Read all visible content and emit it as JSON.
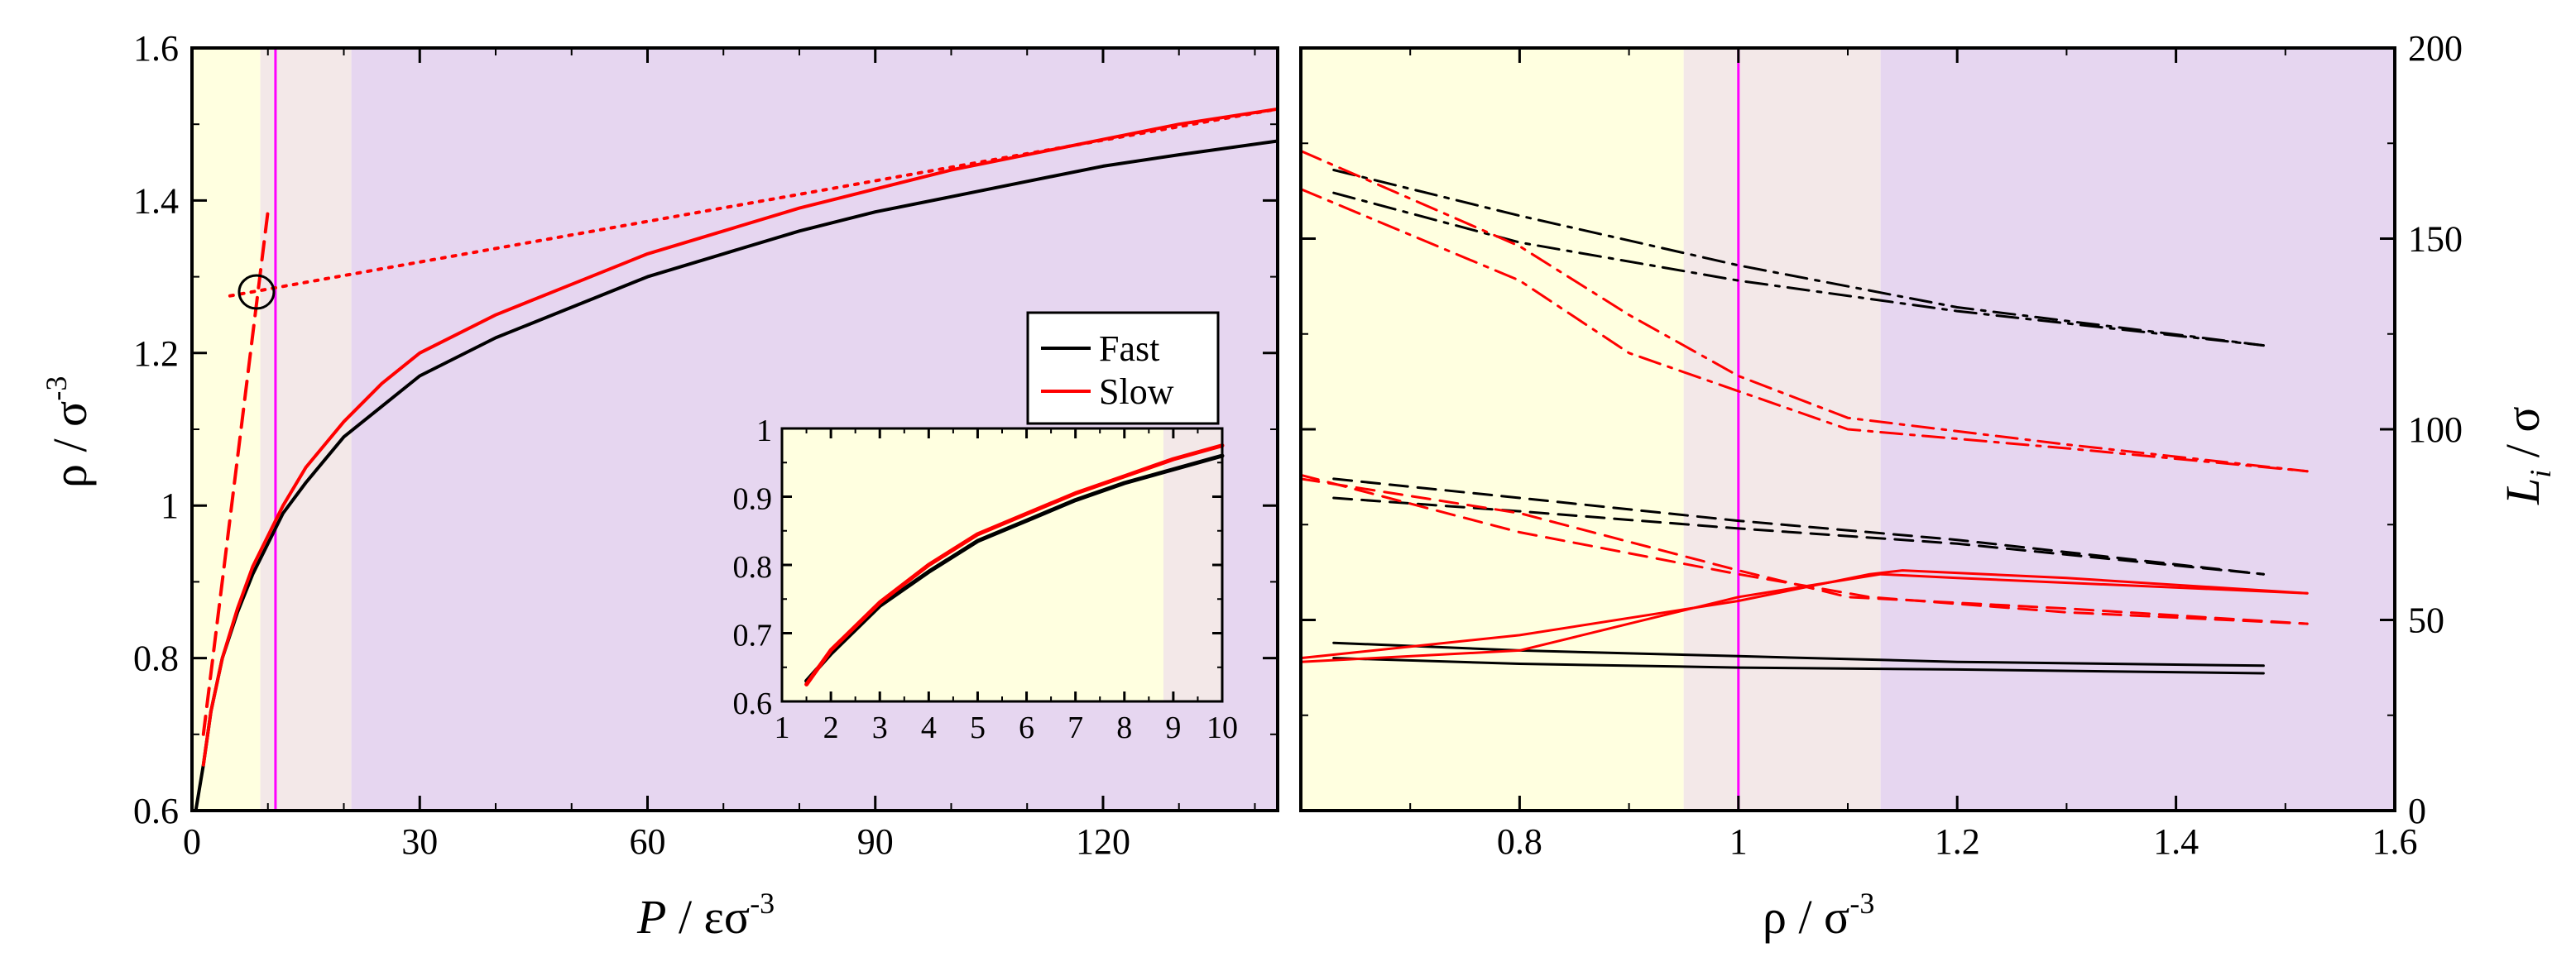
{
  "colors": {
    "yellow": "#ffffe0",
    "pink": "#f3e8e8",
    "purple": "#e6d6f0",
    "magenta": "#ff00ff",
    "fast": "#000000",
    "slow": "#ff0000"
  },
  "chart_data": [
    {
      "type": "line",
      "title": "",
      "xlabel": {
        "P": "P",
        "unit": " / εσ",
        "exp": "-3"
      },
      "ylabel": {
        "main": "ρ / σ",
        "exp": "-3"
      },
      "xlim": [
        0,
        143
      ],
      "ylim": [
        0.6,
        1.6
      ],
      "xticks": [
        0,
        30,
        60,
        90,
        120
      ],
      "yticks": [
        0.6,
        0.8,
        1.0,
        1.2,
        1.4,
        1.6
      ],
      "ytick_labels": [
        "0.6",
        "0.8",
        "1",
        "1.2",
        "1.4",
        "1.6"
      ],
      "regions": [
        {
          "from": 0,
          "to": 9,
          "color": "yellow"
        },
        {
          "from": 9,
          "to": 21,
          "color": "pink"
        },
        {
          "from": 21,
          "to": 143,
          "color": "purple"
        }
      ],
      "vline": 11,
      "legend": {
        "position": "center-right",
        "entries": [
          "Fast",
          "Slow"
        ]
      },
      "series": [
        {
          "name": "Fast",
          "color": "fast",
          "style": "solid",
          "x": [
            0.5,
            1.5,
            2.5,
            4,
            6,
            8,
            10,
            12,
            15,
            20,
            25,
            30,
            40,
            50,
            60,
            70,
            80,
            90,
            100,
            110,
            120,
            130,
            143
          ],
          "y": [
            0.6,
            0.66,
            0.73,
            0.8,
            0.86,
            0.91,
            0.95,
            0.99,
            1.03,
            1.09,
            1.13,
            1.17,
            1.22,
            1.26,
            1.3,
            1.33,
            1.36,
            1.385,
            1.405,
            1.425,
            1.445,
            1.46,
            1.478
          ]
        },
        {
          "name": "Slow",
          "color": "slow",
          "style": "solid",
          "x": [
            1.5,
            2.5,
            4,
            6,
            8,
            10,
            12,
            15,
            20,
            25,
            30,
            40,
            50,
            60,
            70,
            80,
            90,
            100,
            110,
            120,
            130,
            143
          ],
          "y": [
            0.66,
            0.73,
            0.8,
            0.865,
            0.92,
            0.96,
            1.0,
            1.05,
            1.11,
            1.16,
            1.2,
            1.25,
            1.29,
            1.33,
            1.36,
            1.39,
            1.415,
            1.44,
            1.46,
            1.48,
            1.5,
            1.52
          ]
        },
        {
          "name": "dotted tangent",
          "color": "slow",
          "style": "dotted",
          "x": [
            5,
            143
          ],
          "y": [
            1.275,
            1.52
          ]
        },
        {
          "name": "dashed tangent",
          "color": "slow",
          "style": "dashed",
          "x": [
            1.5,
            10
          ],
          "y": [
            0.7,
            1.385
          ]
        }
      ],
      "annotation": {
        "type": "circle",
        "x": 8.5,
        "y": 1.28
      },
      "inset": {
        "xlim": [
          1,
          10
        ],
        "ylim": [
          0.6,
          1.0
        ],
        "xticks": [
          1,
          2,
          3,
          4,
          5,
          6,
          7,
          8,
          9,
          10
        ],
        "yticks": [
          0.6,
          0.7,
          0.8,
          0.9,
          1.0
        ],
        "ytick_labels": [
          "0.6",
          "0.7",
          "0.8",
          "0.9",
          "1"
        ],
        "regions": [
          {
            "from": 1,
            "to": 8.8,
            "color": "yellow"
          },
          {
            "from": 8.8,
            "to": 10,
            "color": "pink"
          }
        ],
        "series": [
          {
            "name": "Fast",
            "color": "fast",
            "x": [
              1.5,
              2,
              3,
              4,
              5,
              6,
              7,
              8,
              9,
              10
            ],
            "y": [
              0.63,
              0.67,
              0.74,
              0.79,
              0.835,
              0.865,
              0.895,
              0.92,
              0.94,
              0.96
            ]
          },
          {
            "name": "Slow",
            "color": "slow",
            "x": [
              1.5,
              2,
              3,
              4,
              5,
              6,
              7,
              8,
              9,
              10
            ],
            "y": [
              0.625,
              0.675,
              0.745,
              0.8,
              0.845,
              0.875,
              0.905,
              0.93,
              0.955,
              0.975
            ]
          }
        ]
      }
    },
    {
      "type": "line",
      "title": "",
      "xlabel": {
        "main": "ρ / σ",
        "exp": "-3"
      },
      "ylabel": {
        "L": "L",
        "sub": "i",
        "unit": " / σ"
      },
      "xlim": [
        0.6,
        1.6
      ],
      "ylim": [
        0,
        200
      ],
      "xticks": [
        0.8,
        1.0,
        1.2,
        1.4,
        1.6
      ],
      "xtick_labels": [
        "0.8",
        "1",
        "1.2",
        "1.4",
        "1.6"
      ],
      "yticks": [
        0,
        50,
        100,
        150,
        200
      ],
      "regions": [
        {
          "from": 0.6,
          "to": 0.95,
          "color": "yellow"
        },
        {
          "from": 0.95,
          "to": 1.13,
          "color": "pink"
        },
        {
          "from": 1.13,
          "to": 1.6,
          "color": "purple"
        }
      ],
      "vline": 1.0,
      "series": [
        {
          "name": "Fast L1 solid a",
          "color": "fast",
          "style": "solid",
          "x": [
            0.63,
            0.8,
            1.0,
            1.2,
            1.48
          ],
          "y": [
            44,
            42,
            40.5,
            39,
            38
          ]
        },
        {
          "name": "Fast L1 solid b",
          "color": "fast",
          "style": "solid",
          "x": [
            0.63,
            0.8,
            1.0,
            1.2,
            1.48
          ],
          "y": [
            40,
            38.5,
            37.5,
            37,
            36
          ]
        },
        {
          "name": "Fast L2 dashed a",
          "color": "fast",
          "style": "dashed",
          "x": [
            0.63,
            0.8,
            1.0,
            1.2,
            1.48
          ],
          "y": [
            87,
            82,
            76,
            71,
            62
          ]
        },
        {
          "name": "Fast L2 dashed b",
          "color": "fast",
          "style": "dashed",
          "x": [
            0.63,
            0.8,
            1.0,
            1.2,
            1.48
          ],
          "y": [
            82,
            78.5,
            74,
            70,
            62
          ]
        },
        {
          "name": "Fast L3 dashdot a",
          "color": "fast",
          "style": "dashdot",
          "x": [
            0.63,
            0.8,
            1.0,
            1.2,
            1.48
          ],
          "y": [
            168,
            156,
            143,
            132,
            122
          ]
        },
        {
          "name": "Fast L3 dashdot b",
          "color": "fast",
          "style": "dashdot",
          "x": [
            0.63,
            0.8,
            1.0,
            1.2,
            1.48
          ],
          "y": [
            162,
            149,
            139,
            131,
            122
          ]
        },
        {
          "name": "Slow L1 solid a",
          "color": "slow",
          "style": "solid",
          "x": [
            0.6,
            0.8,
            1.0,
            1.12,
            1.15,
            1.3,
            1.52
          ],
          "y": [
            40,
            46,
            55,
            62,
            63,
            61,
            57
          ]
        },
        {
          "name": "Slow L1 solid b",
          "color": "slow",
          "style": "solid",
          "x": [
            0.6,
            0.8,
            0.9,
            1.0,
            1.13,
            1.2,
            1.52
          ],
          "y": [
            39,
            42,
            49,
            56,
            62,
            61,
            57
          ]
        },
        {
          "name": "Slow L2 dashed a",
          "color": "slow",
          "style": "dashed",
          "x": [
            0.6,
            0.8,
            1.0,
            1.1,
            1.3,
            1.52
          ],
          "y": [
            87,
            78,
            63,
            56,
            53,
            49
          ]
        },
        {
          "name": "Slow L2 dashed b",
          "color": "slow",
          "style": "dashed",
          "x": [
            0.6,
            0.8,
            1.0,
            1.12,
            1.3,
            1.52
          ],
          "y": [
            88,
            73,
            62,
            56,
            52,
            49
          ]
        },
        {
          "name": "Slow L3 dashdot a",
          "color": "slow",
          "style": "dashdot",
          "x": [
            0.6,
            0.8,
            0.9,
            1.0,
            1.1,
            1.3,
            1.52
          ],
          "y": [
            173,
            148,
            130,
            114,
            103,
            96,
            89
          ]
        },
        {
          "name": "Slow L3 dashdot b",
          "color": "slow",
          "style": "dashdot",
          "x": [
            0.6,
            0.8,
            0.9,
            1.0,
            1.1,
            1.3,
            1.52
          ],
          "y": [
            163,
            139,
            120,
            110,
            100,
            95,
            89
          ]
        }
      ]
    }
  ]
}
